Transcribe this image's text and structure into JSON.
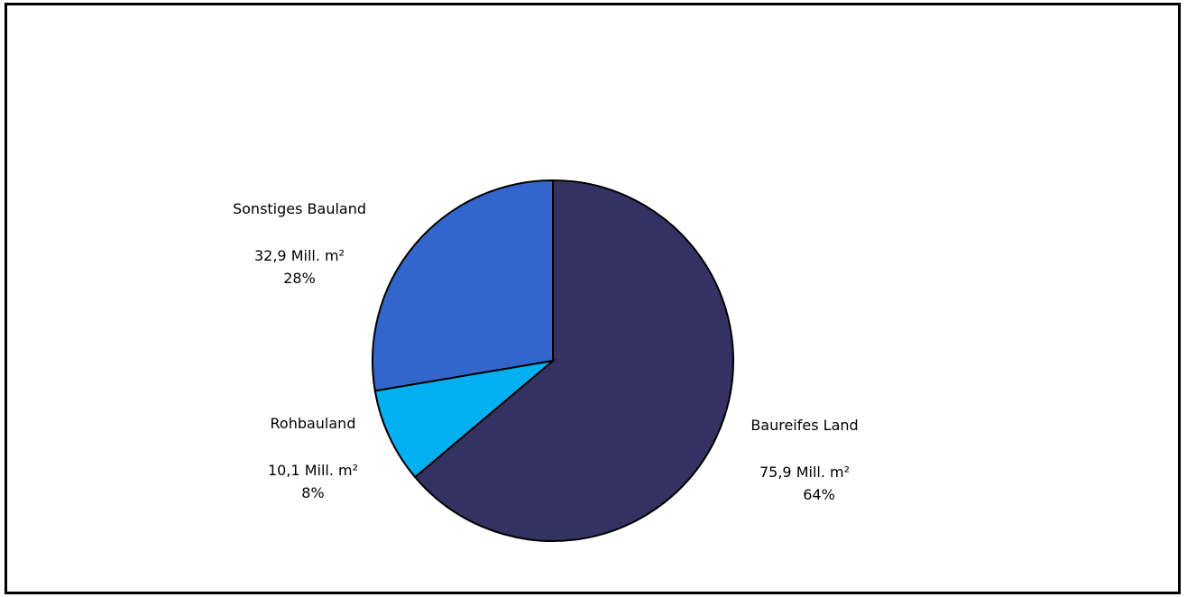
{
  "chart_data": {
    "type": "pie",
    "title": "",
    "slices": [
      {
        "label": "Baureifes Land",
        "value": 75.9,
        "value_text": "75,9 Mill. m²",
        "percent_text": "64%",
        "color": "#343263"
      },
      {
        "label": "Rohbauland",
        "value": 10.1,
        "value_text": "10,1 Mill. m²",
        "percent_text": "8%",
        "color": "#00b0f0"
      },
      {
        "label": "Sonstiges Bauland",
        "value": 32.9,
        "value_text": "32,9 Mill. m²",
        "percent_text": "28%",
        "color": "#3366cc"
      }
    ],
    "start_angle_deg": 0,
    "direction": "clockwise",
    "legend": "none",
    "outline_color": "#000000"
  }
}
